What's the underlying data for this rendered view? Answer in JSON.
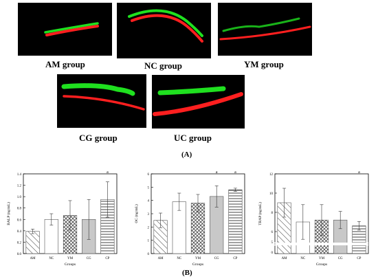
{
  "panelA": {
    "label": "(A)",
    "groups": [
      {
        "name": "AM group"
      },
      {
        "name": "NC group"
      },
      {
        "name": "YM group"
      },
      {
        "name": "CG group"
      },
      {
        "name": "UC group"
      }
    ]
  },
  "panelB": {
    "label": "(B)"
  },
  "chart_data": [
    {
      "type": "bar",
      "categories": [
        "AM",
        "NC",
        "YM",
        "CG",
        "CP"
      ],
      "values": [
        0.39,
        0.6,
        0.67,
        0.6,
        0.95
      ],
      "errors": [
        0.04,
        0.1,
        0.26,
        0.35,
        0.31
      ],
      "annotations": [
        "",
        "",
        "",
        "",
        "a"
      ],
      "ylabel": "BALP (ng/mL)",
      "xlabel": "Groups",
      "ylim": [
        0,
        1.4
      ],
      "yticks": [
        "0.0",
        "0.2",
        "0.4",
        "0.6",
        "0.8",
        "1.0",
        "1.2",
        "1.4"
      ]
    },
    {
      "type": "bar",
      "categories": [
        "AM",
        "NC",
        "YM",
        "CG",
        "CP"
      ],
      "values": [
        2.5,
        3.9,
        3.8,
        4.3,
        4.8
      ],
      "errors": [
        0.55,
        0.65,
        0.65,
        0.8,
        0.12
      ],
      "annotations": [
        "",
        "",
        "",
        "a",
        "a"
      ],
      "ylabel": "OC (ng/mL)",
      "xlabel": "Groups",
      "ylim": [
        0,
        6
      ],
      "yticks": [
        "0",
        "1",
        "2",
        "3",
        "4",
        "5",
        "6"
      ]
    },
    {
      "type": "bar",
      "categories": [
        "AM",
        "NC",
        "YM",
        "CG",
        "CP"
      ],
      "values": [
        9.0,
        7.0,
        7.2,
        7.2,
        6.6
      ],
      "errors": [
        1.5,
        1.8,
        1.6,
        0.9,
        0.45
      ],
      "annotations": [
        "",
        "",
        "",
        "",
        "a"
      ],
      "ylabel": "TRAP (ng/mL)",
      "xlabel": "Groups",
      "ylim": [
        5,
        12
      ],
      "axis_break": true,
      "yticks": [
        "6",
        "8",
        "10",
        "12"
      ],
      "yticks_below_break": [
        "5",
        "0"
      ]
    }
  ],
  "colors": {
    "green": "#1fe01f",
    "red": "#ff1f1f",
    "cg_fill": "#c8c8c8"
  }
}
